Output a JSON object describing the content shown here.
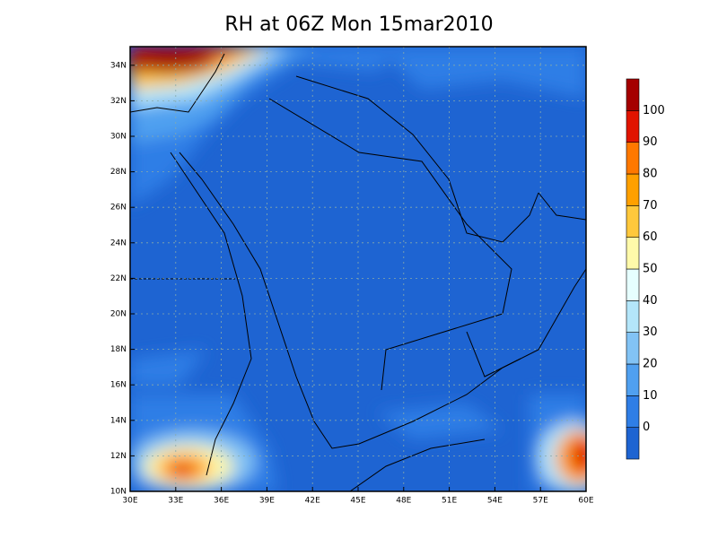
{
  "title": "RH at 06Z Mon 15mar2010",
  "x_axis": {
    "labels": [
      "30E",
      "33E",
      "36E",
      "39E",
      "42E",
      "45E",
      "48E",
      "51E",
      "54E",
      "57E",
      "60E"
    ]
  },
  "y_axis": {
    "labels": [
      "10N",
      "12N",
      "14N",
      "16N",
      "18N",
      "20N",
      "22N",
      "24N",
      "26N",
      "28N",
      "30N",
      "32N",
      "34N"
    ]
  },
  "colorbar": {
    "labels": [
      0,
      10,
      20,
      30,
      40,
      50,
      60,
      70,
      80,
      90,
      100
    ],
    "colors": [
      "#1e64d2",
      "#2f7ee6",
      "#50a0f0",
      "#82c3f5",
      "#b4e6fa",
      "#e6ffff",
      "#fffaaa",
      "#ffc83c",
      "#ffa000",
      "#ff7800",
      "#e11400",
      "#a50000"
    ]
  }
}
